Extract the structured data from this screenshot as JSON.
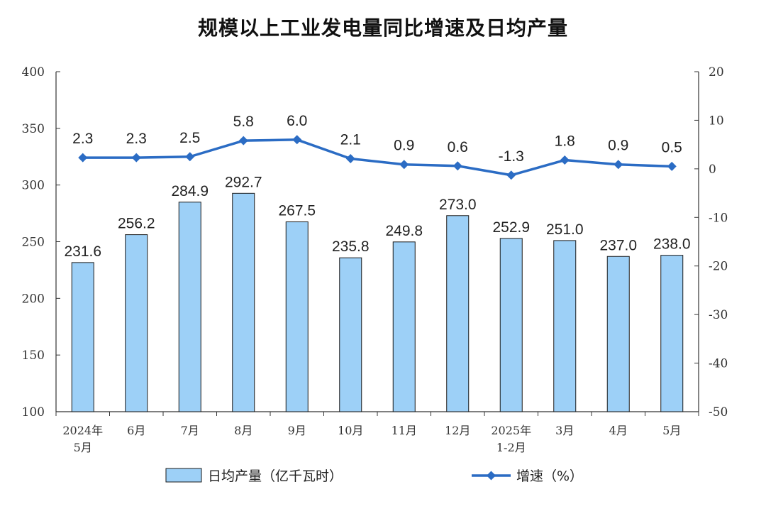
{
  "colors": {
    "bar_fill": "#9dd0f7",
    "bar_stroke": "#1a1a1a",
    "line": "#2b6cc4",
    "axis": "#333333"
  },
  "chart_data": {
    "type": "bar+line",
    "title": "规模以上工业发电量同比增速及日均产量",
    "categories": [
      [
        "2024年",
        "5月"
      ],
      [
        "6月"
      ],
      [
        "7月"
      ],
      [
        "8月"
      ],
      [
        "9月"
      ],
      [
        "10月"
      ],
      [
        "11月"
      ],
      [
        "12月"
      ],
      [
        "2025年",
        "1-2月"
      ],
      [
        "3月"
      ],
      [
        "4月"
      ],
      [
        "5月"
      ]
    ],
    "y_left": {
      "ylim": [
        100,
        400
      ],
      "ticks": [
        100,
        150,
        200,
        250,
        300,
        350,
        400
      ]
    },
    "y_right": {
      "ylim": [
        -50,
        20
      ],
      "ticks": [
        -50,
        -40,
        -30,
        -20,
        -10,
        0,
        10,
        20
      ]
    },
    "series": [
      {
        "name": "日均产量（亿千瓦时）",
        "type": "bar",
        "axis": "left",
        "values": [
          231.6,
          256.2,
          284.9,
          292.7,
          267.5,
          235.8,
          249.8,
          273.0,
          252.9,
          251.0,
          237.0,
          238.0
        ],
        "labels": [
          "231.6",
          "256.2",
          "284.9",
          "292.7",
          "267.5",
          "235.8",
          "249.8",
          "273.0",
          "252.9",
          "251.0",
          "237.0",
          "238.0"
        ]
      },
      {
        "name": "增速（%）",
        "type": "line",
        "axis": "right",
        "values": [
          2.3,
          2.3,
          2.5,
          5.8,
          6.0,
          2.1,
          0.9,
          0.6,
          -1.3,
          1.8,
          0.9,
          0.5
        ],
        "labels": [
          "2.3",
          "2.3",
          "2.5",
          "5.8",
          "6.0",
          "2.1",
          "0.9",
          "0.6",
          "-1.3",
          "1.8",
          "0.9",
          "0.5"
        ]
      }
    ],
    "legend": {
      "placement": "bottom",
      "items": [
        {
          "label": "日均产量（亿千瓦时）",
          "marker": "bar"
        },
        {
          "label": "增速（%）",
          "marker": "line-diamond"
        }
      ]
    }
  }
}
